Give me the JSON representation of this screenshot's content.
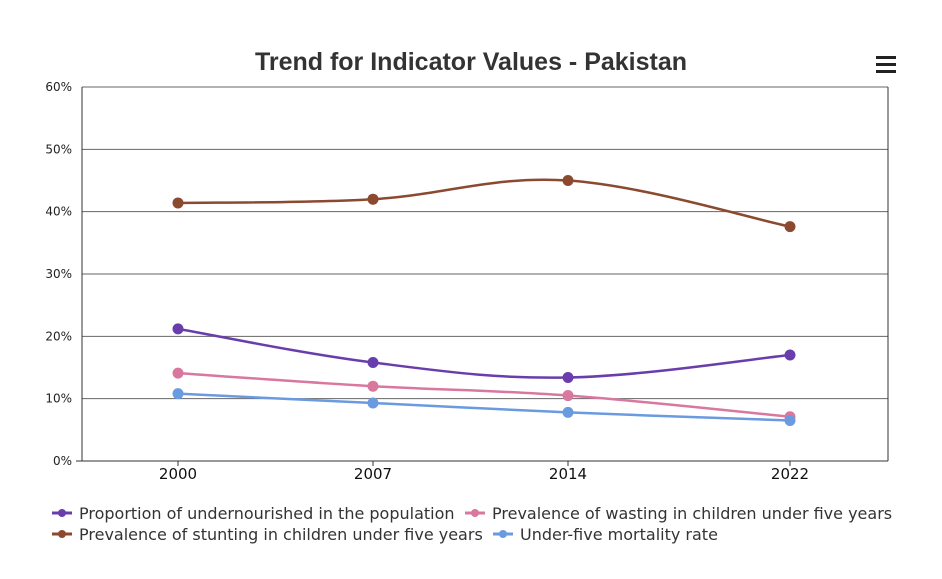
{
  "chart_data": {
    "type": "line",
    "title": "Trend for Indicator Values - Pakistan",
    "categories": [
      "2000",
      "2007",
      "2014",
      "2022"
    ],
    "y_ticks": [
      "0%",
      "10%",
      "20%",
      "30%",
      "40%",
      "50%",
      "60%"
    ],
    "ylim": [
      0,
      60
    ],
    "y_unit": "%",
    "grid": true,
    "legend_position": "bottom",
    "series": [
      {
        "name": "Proportion of undernourished in the population",
        "color": "#6a3dad",
        "values": [
          21.2,
          15.8,
          13.4,
          17.0
        ]
      },
      {
        "name": "Prevalence of wasting in children under five years",
        "color": "#d9789e",
        "values": [
          14.1,
          12.0,
          10.5,
          7.1
        ]
      },
      {
        "name": "Prevalence of stunting in children under five years",
        "color": "#8b4a2f",
        "values": [
          41.4,
          42.0,
          45.0,
          37.6
        ]
      },
      {
        "name": "Under-five mortality rate",
        "color": "#6a9ae0",
        "values": [
          10.8,
          9.3,
          7.8,
          6.5
        ]
      }
    ]
  },
  "menu_icon": "hamburger-menu-icon"
}
